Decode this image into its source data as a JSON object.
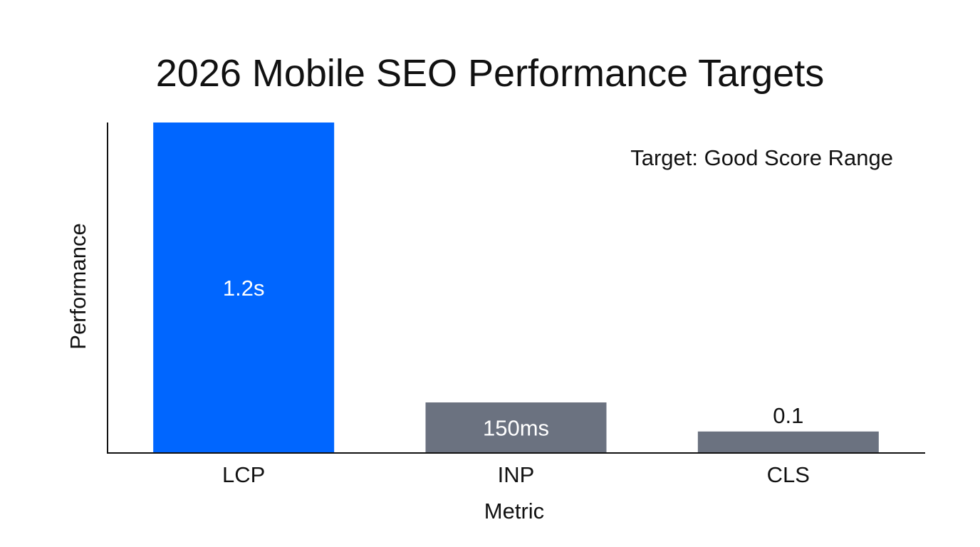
{
  "chart_data": {
    "type": "bar",
    "title": "2026 Mobile SEO Performance Targets",
    "xlabel": "Metric",
    "ylabel": "Performance",
    "annotation": "Target: Good Score Range",
    "categories": [
      "LCP",
      "INP",
      "CLS"
    ],
    "values": [
      100,
      15.3,
      6.5
    ],
    "data_labels": [
      "1.2s",
      "150ms",
      "0.1"
    ],
    "data_label_positions": [
      "inside",
      "inside",
      "above"
    ],
    "colors": [
      "#0066FF",
      "#6B7280",
      "#6B7280"
    ],
    "ylim": [
      0,
      100
    ],
    "grid": false,
    "y_ticks_shown": false
  }
}
